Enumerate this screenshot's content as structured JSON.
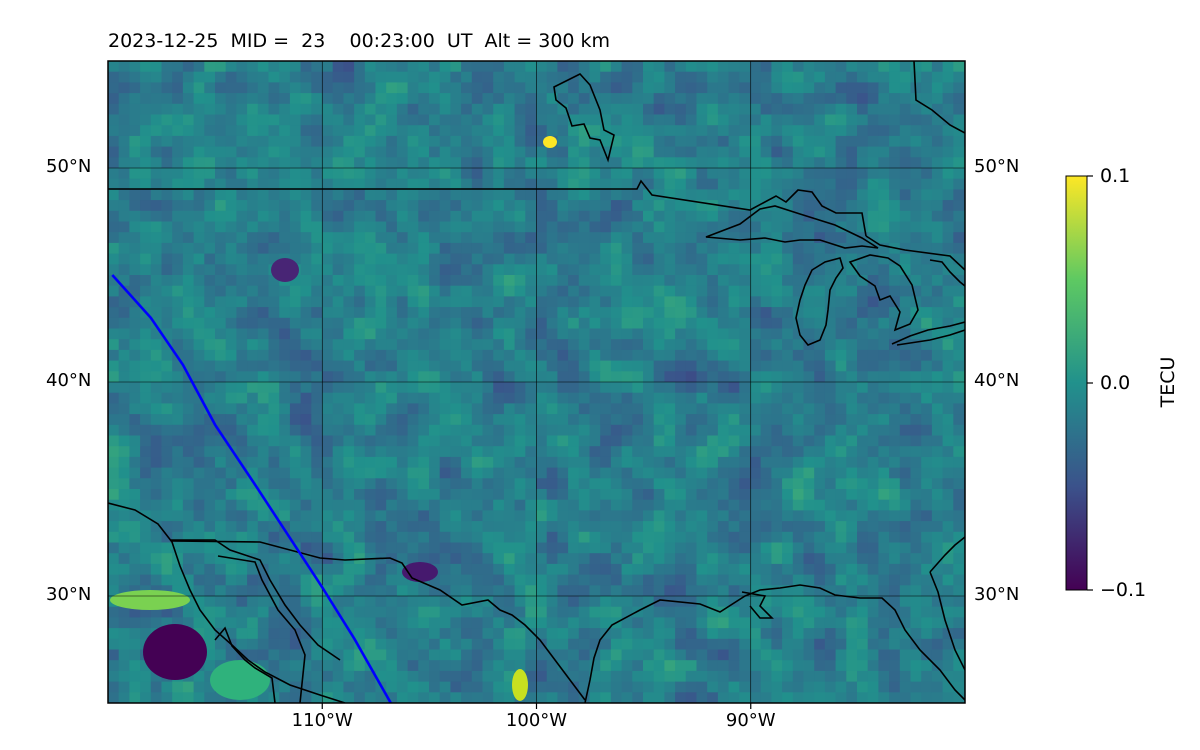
{
  "title": "2023-12-25  MID =  23    00:23:00  UT  Alt = 300 km",
  "map": {
    "lon_range": [
      -120,
      -80
    ],
    "lat_range": [
      25,
      55
    ],
    "lat_ticks": [
      {
        "value": 50,
        "label": "50°N"
      },
      {
        "value": 40,
        "label": "40°N"
      },
      {
        "value": 30,
        "label": "30°N"
      }
    ],
    "lon_ticks": [
      {
        "value": -110,
        "label": "110°W"
      },
      {
        "value": -100,
        "label": "100°W"
      },
      {
        "value": -90,
        "label": "90°W"
      }
    ],
    "colormap": "viridis",
    "track_color": "#0000ff",
    "coast_color": "#000000",
    "grid": true
  },
  "colorbar": {
    "label": "TECU",
    "min": -0.1,
    "max": 0.1,
    "ticks": [
      {
        "value": 0.1,
        "label": "0.1"
      },
      {
        "value": 0.0,
        "label": "0.0"
      },
      {
        "value": -0.1,
        "label": "−0.1"
      }
    ]
  },
  "track": [
    [
      -119.8,
      45.0
    ],
    [
      -118.0,
      43.0
    ],
    [
      -116.5,
      40.8
    ],
    [
      -115.0,
      38.0
    ],
    [
      -113.2,
      35.3
    ],
    [
      -111.5,
      32.7
    ],
    [
      -110.0,
      30.4
    ],
    [
      -108.5,
      28.0
    ],
    [
      -106.8,
      25.0
    ]
  ]
}
